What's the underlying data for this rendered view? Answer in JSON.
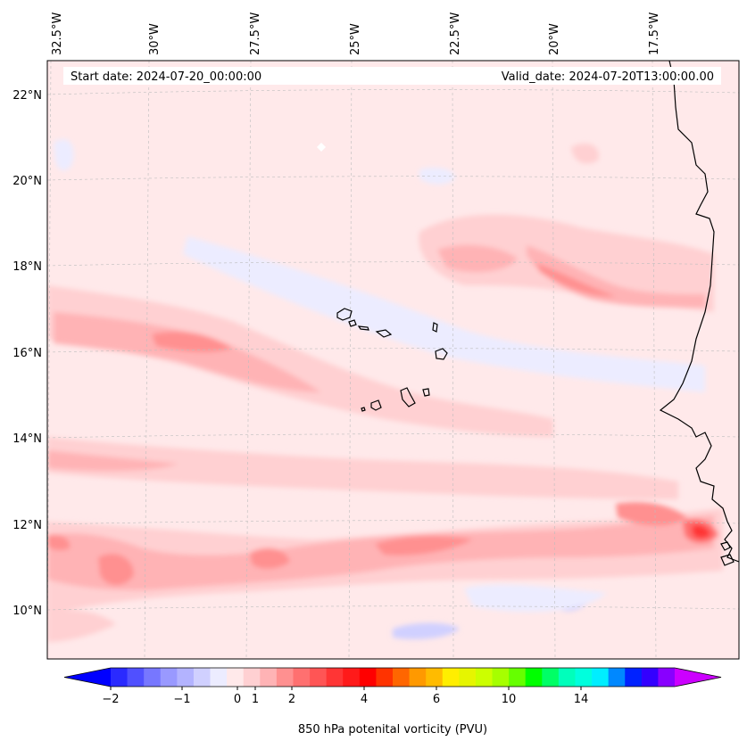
{
  "header": {
    "start_label": "Start date: 2024-07-20_00:00:00",
    "valid_label": "Valid_date: 2024-07-20T13:00:00.00"
  },
  "map": {
    "lon_labels": [
      "32.5°W",
      "30°W",
      "27.5°W",
      "25°W",
      "22.5°W",
      "20°W",
      "17.5°W"
    ],
    "lat_labels": [
      "22°N",
      "20°N",
      "18°N",
      "16°N",
      "14°N",
      "12°N",
      "10°N"
    ],
    "background_color": "#ffe9ea",
    "gridline_color": "#bdbdbd",
    "coastline_color": "#000000"
  },
  "colorbar": {
    "label": "850 hPa potenital vorticity (PVU)",
    "tick_labels": [
      "-2",
      "-1",
      "0",
      "1",
      "2",
      "4",
      "6",
      "10",
      "14"
    ],
    "colors": [
      "#0000ff",
      "#2a2aff",
      "#5050ff",
      "#7777ff",
      "#9999ff",
      "#b3b3ff",
      "#d0d0ff",
      "#ececff",
      "#ffe9ea",
      "#ffd0d2",
      "#ffb3b5",
      "#ff9090",
      "#ff7070",
      "#ff5555",
      "#ff3535",
      "#ff1a1a",
      "#ff0000",
      "#ff3300",
      "#ff6600",
      "#ff9900",
      "#ffbb00",
      "#ffee00",
      "#e6f500",
      "#ccff00",
      "#a6ff00",
      "#66ff00",
      "#00ff00",
      "#00ff66",
      "#00ffbb",
      "#00ffdd",
      "#00eeff",
      "#0088ff",
      "#0022ff",
      "#3300ff",
      "#8800ff",
      "#cc00ff"
    ]
  }
}
